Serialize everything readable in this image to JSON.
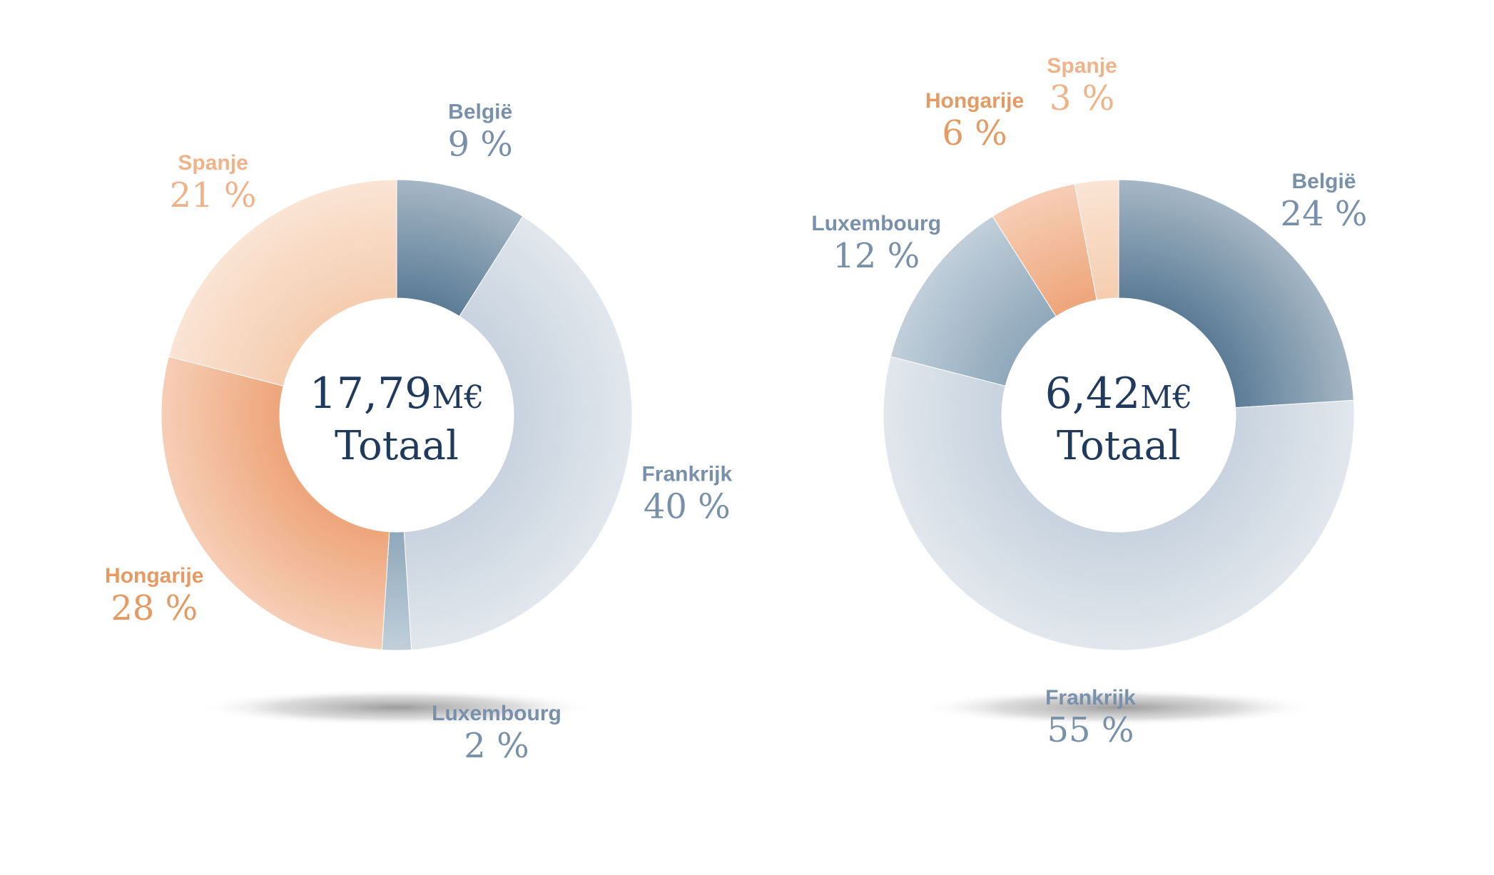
{
  "colors": {
    "belgie": "#5c7c96",
    "frankrijk": "#c8d3df",
    "luxembourg": "#8fa8bb",
    "hongarije": "#eea57a",
    "spanje": "#f5cdb0",
    "label_blue": "#7990aa",
    "label_orange_dark": "#e59a63",
    "label_orange_light": "#efb38a",
    "center_text": "#1f3a5c"
  },
  "chart_data": [
    {
      "type": "pie",
      "variant": "donut",
      "center": {
        "total": "17,79",
        "unit": "M€",
        "label": "Totaal"
      },
      "slices": [
        {
          "name": "België",
          "value": 9,
          "display": "9 %",
          "color_key": "belgie",
          "label_color_key": "label_blue"
        },
        {
          "name": "Frankrijk",
          "value": 40,
          "display": "40 %",
          "color_key": "frankrijk",
          "label_color_key": "label_blue"
        },
        {
          "name": "Luxembourg",
          "value": 2,
          "display": "2 %",
          "color_key": "luxembourg",
          "label_color_key": "label_blue"
        },
        {
          "name": "Hongarije",
          "value": 28,
          "display": "28 %",
          "color_key": "hongarije",
          "label_color_key": "label_orange_dark"
        },
        {
          "name": "Spanje",
          "value": 21,
          "display": "21 %",
          "color_key": "spanje",
          "label_color_key": "label_orange_light"
        }
      ]
    },
    {
      "type": "pie",
      "variant": "donut",
      "center": {
        "total": "6,42",
        "unit": "M€",
        "label": "Totaal"
      },
      "slices": [
        {
          "name": "België",
          "value": 24,
          "display": "24 %",
          "color_key": "belgie",
          "label_color_key": "label_blue"
        },
        {
          "name": "Frankrijk",
          "value": 55,
          "display": "55 %",
          "color_key": "frankrijk",
          "label_color_key": "label_blue"
        },
        {
          "name": "Luxembourg",
          "value": 12,
          "display": "12 %",
          "color_key": "luxembourg",
          "label_color_key": "label_blue"
        },
        {
          "name": "Hongarije",
          "value": 6,
          "display": "6 %",
          "color_key": "hongarije",
          "label_color_key": "label_orange_dark"
        },
        {
          "name": "Spanje",
          "value": 3,
          "display": "3 %",
          "color_key": "spanje",
          "label_color_key": "label_orange_light"
        }
      ]
    }
  ]
}
